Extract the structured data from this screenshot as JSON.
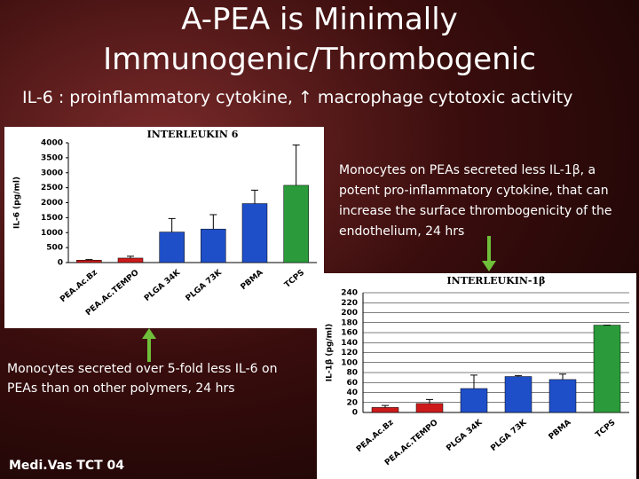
{
  "title": "A-PEA is Minimally Immunogenic/Thrombogenic",
  "subtitle": "IL-6 : proinflammatory cytokine, ↑ macrophage cytotoxic activity",
  "caption_right": "Monocytes on PEAs secreted less IL-1β,  a potent pro-inflammatory cytokine, that can increase the surface thrombogenicity of the endothelium, 24 hrs",
  "caption_left": "Monocytes secreted over 5-fold less IL-6 on PEAs than on other polymers, 24 hrs",
  "footer": "Medi.Vas TCT 04",
  "chart_data": [
    {
      "type": "bar",
      "title": "INTERLEUKIN 6",
      "y_label": "IL-6 (pg/ml)",
      "categories": [
        "PEA.Ac.Bz",
        "PEA.Ac.TEMPO",
        "PLGA 34K",
        "PLGA 73K",
        "PBMA",
        "TCPS"
      ],
      "values": [
        80,
        150,
        1020,
        1120,
        1970,
        2580
      ],
      "errors": [
        20,
        60,
        450,
        480,
        450,
        1350
      ],
      "colors": [
        "#cc1a1a",
        "#cc1a1a",
        "#1f4fc8",
        "#1f4fc8",
        "#1f4fc8",
        "#2a9a3a"
      ],
      "ylim": [
        0,
        4000
      ],
      "yticks": [
        0,
        500,
        1000,
        1500,
        2000,
        2500,
        3000,
        3500,
        4000
      ],
      "grid": false
    },
    {
      "type": "bar",
      "title": "INTERLEUKIN-1β",
      "y_label": "IL-1β (pg/ml)",
      "categories": [
        "PEA.Ac.Bz",
        "PEA.Ac.TEMPO",
        "PLGA 34K",
        "PLGA 73K",
        "PBMA",
        "TCPS"
      ],
      "values": [
        10,
        18,
        48,
        72,
        66,
        175
      ],
      "errors": [
        4,
        8,
        27,
        2,
        11,
        0
      ],
      "colors": [
        "#cc1a1a",
        "#cc1a1a",
        "#1f4fc8",
        "#1f4fc8",
        "#1f4fc8",
        "#2a9a3a"
      ],
      "ylim": [
        0,
        240
      ],
      "yticks": [
        0,
        20,
        40,
        60,
        80,
        100,
        120,
        140,
        160,
        180,
        200,
        220,
        240
      ],
      "grid": true
    }
  ]
}
